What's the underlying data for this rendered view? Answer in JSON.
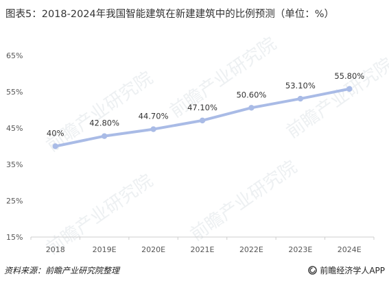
{
  "title": "图表5：2018-2024年我国智能建筑在新建建筑中的比例预测（单位：%）",
  "watermark_text": "前瞻产业研究院",
  "footer": {
    "source": "资料来源：前瞻产业研究院整理",
    "brand": "前瞻经济学人APP"
  },
  "colors": {
    "line": "#a9bbe6",
    "marker": "#a9bbe6",
    "grid": "#e6e6e6",
    "axis_text": "#555555",
    "label_text": "#333333"
  },
  "chart_data": {
    "type": "line",
    "title": "图表5：2018-2024年我国智能建筑在新建建筑中的比例预测（单位：%）",
    "xlabel": "",
    "ylabel": "",
    "categories": [
      "2018",
      "2019E",
      "2020E",
      "2021E",
      "2022E",
      "2023E",
      "2024E"
    ],
    "values": [
      40,
      42.8,
      44.7,
      47.1,
      50.6,
      53.1,
      55.8
    ],
    "data_labels": [
      "40%",
      "42.80%",
      "44.70%",
      "47.10%",
      "50.60%",
      "53.10%",
      "55.80%"
    ],
    "ylim": [
      15,
      65
    ],
    "yticks": [
      15,
      25,
      35,
      45,
      55,
      65
    ],
    "ytick_labels": [
      "15%",
      "25%",
      "35%",
      "45%",
      "55%",
      "65%"
    ],
    "grid": false,
    "legend": "none"
  }
}
